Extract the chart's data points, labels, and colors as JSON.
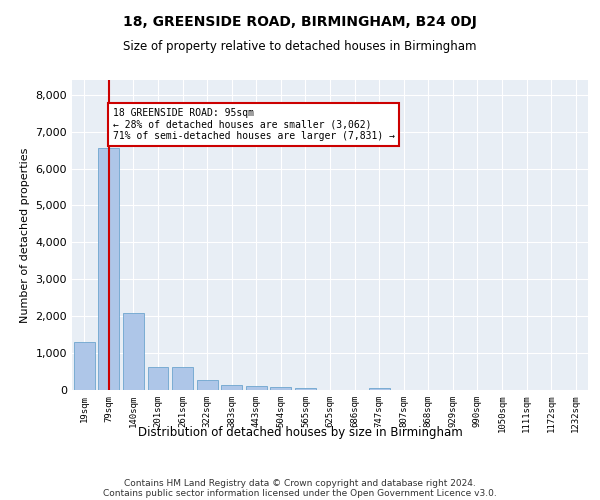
{
  "title1": "18, GREENSIDE ROAD, BIRMINGHAM, B24 0DJ",
  "title2": "Size of property relative to detached houses in Birmingham",
  "xlabel": "Distribution of detached houses by size in Birmingham",
  "ylabel": "Number of detached properties",
  "categories": [
    "19sqm",
    "79sqm",
    "140sqm",
    "201sqm",
    "261sqm",
    "322sqm",
    "383sqm",
    "443sqm",
    "504sqm",
    "565sqm",
    "625sqm",
    "686sqm",
    "747sqm",
    "807sqm",
    "868sqm",
    "929sqm",
    "990sqm",
    "1050sqm",
    "1111sqm",
    "1172sqm",
    "1232sqm"
  ],
  "values": [
    1300,
    6550,
    2100,
    620,
    620,
    260,
    130,
    110,
    80,
    60,
    0,
    0,
    60,
    0,
    0,
    0,
    0,
    0,
    0,
    0,
    0
  ],
  "bar_color": "#aec6e8",
  "bar_edge_color": "#5a9ac8",
  "annotation_line1": "18 GREENSIDE ROAD: 95sqm",
  "annotation_line2": "← 28% of detached houses are smaller (3,062)",
  "annotation_line3": "71% of semi-detached houses are larger (7,831) →",
  "vline_x": 1,
  "vline_color": "#cc0000",
  "box_color": "#cc0000",
  "ylim": [
    0,
    8400
  ],
  "yticks": [
    0,
    1000,
    2000,
    3000,
    4000,
    5000,
    6000,
    7000,
    8000
  ],
  "footer1": "Contains HM Land Registry data © Crown copyright and database right 2024.",
  "footer2": "Contains public sector information licensed under the Open Government Licence v3.0.",
  "bg_color": "#e8eef5",
  "bar_width": 0.85
}
